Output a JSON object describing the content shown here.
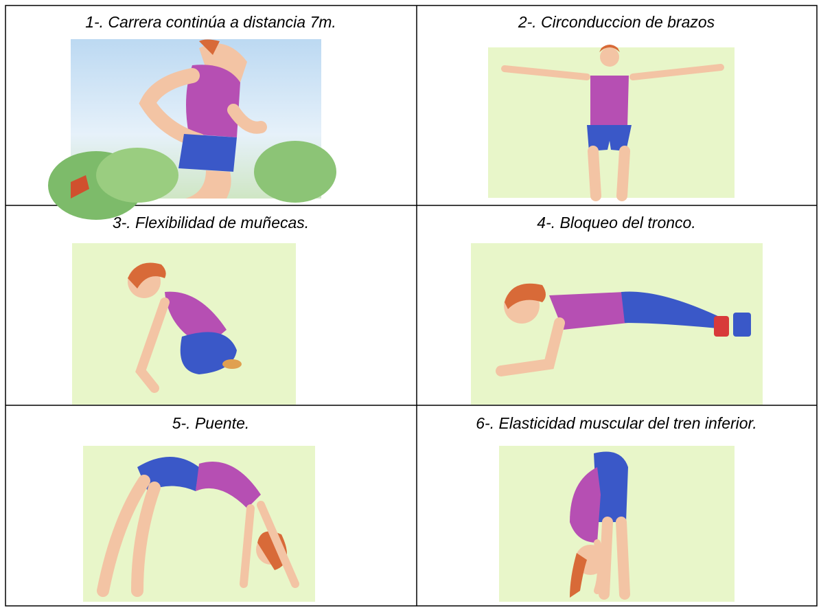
{
  "table": {
    "rows": [
      [
        {
          "caption": "1-. Carrera continúa a distancia 7m."
        },
        {
          "caption": "2-. Circonduccion de brazos"
        }
      ],
      [
        {
          "caption": "3-. Flexibilidad de muñecas."
        },
        {
          "caption": "4-. Bloqueo del tronco."
        }
      ],
      [
        {
          "caption": "5-. Puente."
        },
        {
          "caption": "6-. Elasticidad muscular del tren inferior."
        }
      ]
    ]
  }
}
